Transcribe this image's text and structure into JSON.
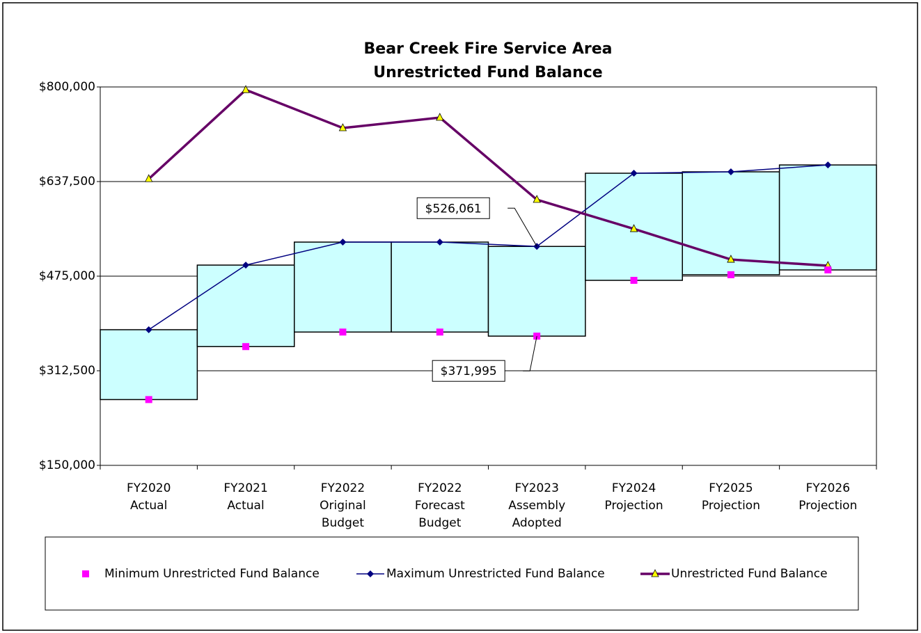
{
  "chart_data": {
    "type": "floating-box-line",
    "title": "Bear Creek Fire Service Area",
    "subtitle": "Unrestricted Fund Balance",
    "categories": [
      "FY2020\nActual",
      "FY2021\nActual",
      "FY2022\nOriginal\nBudget",
      "FY2022\nForecast\nBudget",
      "FY2023\nAssembly\nAdopted",
      "FY2024\nProjection",
      "FY2025\nProjection",
      "FY2026\nProjection"
    ],
    "series": [
      {
        "name": "Minimum Unrestricted Fund Balance",
        "color": "#ff00ff",
        "values": [
          263000,
          354000,
          379000,
          379000,
          371995,
          467800,
          477400,
          485700
        ],
        "value_labels": [
          null,
          null,
          null,
          null,
          "$371,995",
          null,
          null,
          null
        ]
      },
      {
        "name": "Maximum Unrestricted Fund Balance",
        "color": "#000080",
        "values": [
          383000,
          494000,
          533500,
          533500,
          526061,
          651800,
          654200,
          666000
        ],
        "value_labels": [
          null,
          null,
          null,
          null,
          "$526,061",
          null,
          null,
          null
        ]
      },
      {
        "name": "Unrestricted Fund Balance",
        "color": "#660066",
        "marker_color": "#ffff00",
        "values": [
          642000,
          795000,
          729500,
          747400,
          606400,
          556200,
          503600,
          492900
        ]
      }
    ],
    "box_color": "#ccffff",
    "ylim": [
      150000,
      800000
    ],
    "yticks": [
      {
        "value": 150000,
        "label": "$150,000"
      },
      {
        "value": 312500,
        "label": "$312,500"
      },
      {
        "value": 475000,
        "label": "$475,000"
      },
      {
        "value": 637500,
        "label": "$637,500"
      },
      {
        "value": 800000,
        "label": "$800,000"
      }
    ],
    "grid": true
  }
}
